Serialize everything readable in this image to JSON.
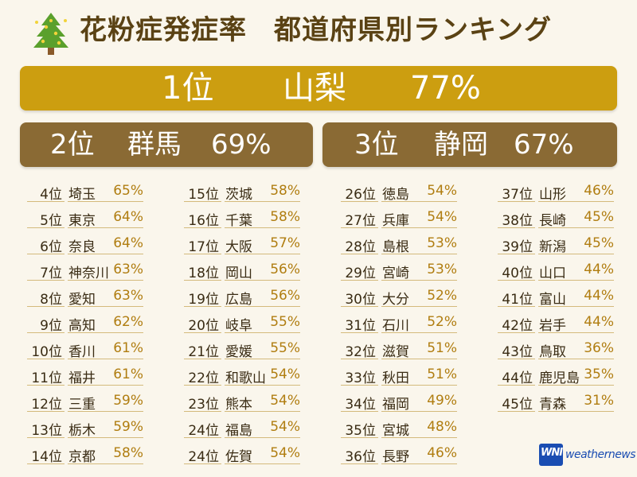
{
  "title": {
    "part1": "花粉症発症率",
    "part2": "都道府県別ランキング",
    "icon": "tree-icon"
  },
  "top": [
    {
      "rank": "1位",
      "pref": "山梨",
      "value": "77%"
    },
    {
      "rank": "2位",
      "pref": "群馬",
      "value": "69%"
    },
    {
      "rank": "3位",
      "pref": "静岡",
      "value": "67%"
    }
  ],
  "columns": [
    [
      {
        "rank": "4位",
        "pref": "埼玉",
        "value": "65%"
      },
      {
        "rank": "5位",
        "pref": "東京",
        "value": "64%"
      },
      {
        "rank": "6位",
        "pref": "奈良",
        "value": "64%"
      },
      {
        "rank": "7位",
        "pref": "神奈川",
        "value": "63%"
      },
      {
        "rank": "8位",
        "pref": "愛知",
        "value": "63%"
      },
      {
        "rank": "9位",
        "pref": "高知",
        "value": "62%"
      },
      {
        "rank": "10位",
        "pref": "香川",
        "value": "61%"
      },
      {
        "rank": "11位",
        "pref": "福井",
        "value": "61%"
      },
      {
        "rank": "12位",
        "pref": "三重",
        "value": "59%"
      },
      {
        "rank": "13位",
        "pref": "栃木",
        "value": "59%"
      },
      {
        "rank": "14位",
        "pref": "京都",
        "value": "58%"
      }
    ],
    [
      {
        "rank": "15位",
        "pref": "茨城",
        "value": "58%"
      },
      {
        "rank": "16位",
        "pref": "千葉",
        "value": "58%"
      },
      {
        "rank": "17位",
        "pref": "大阪",
        "value": "57%"
      },
      {
        "rank": "18位",
        "pref": "岡山",
        "value": "56%"
      },
      {
        "rank": "19位",
        "pref": "広島",
        "value": "56%"
      },
      {
        "rank": "20位",
        "pref": "岐阜",
        "value": "55%"
      },
      {
        "rank": "21位",
        "pref": "愛媛",
        "value": "55%"
      },
      {
        "rank": "22位",
        "pref": "和歌山",
        "value": "54%"
      },
      {
        "rank": "23位",
        "pref": "熊本",
        "value": "54%"
      },
      {
        "rank": "24位",
        "pref": "福島",
        "value": "54%"
      },
      {
        "rank": "24位",
        "pref": "佐賀",
        "value": "54%"
      }
    ],
    [
      {
        "rank": "26位",
        "pref": "徳島",
        "value": "54%"
      },
      {
        "rank": "27位",
        "pref": "兵庫",
        "value": "54%"
      },
      {
        "rank": "28位",
        "pref": "島根",
        "value": "53%"
      },
      {
        "rank": "29位",
        "pref": "宮崎",
        "value": "53%"
      },
      {
        "rank": "30位",
        "pref": "大分",
        "value": "52%"
      },
      {
        "rank": "31位",
        "pref": "石川",
        "value": "52%"
      },
      {
        "rank": "32位",
        "pref": "滋賀",
        "value": "51%"
      },
      {
        "rank": "33位",
        "pref": "秋田",
        "value": "51%"
      },
      {
        "rank": "34位",
        "pref": "福岡",
        "value": "49%"
      },
      {
        "rank": "35位",
        "pref": "宮城",
        "value": "48%"
      },
      {
        "rank": "36位",
        "pref": "長野",
        "value": "46%"
      }
    ],
    [
      {
        "rank": "37位",
        "pref": "山形",
        "value": "46%"
      },
      {
        "rank": "38位",
        "pref": "長崎",
        "value": "45%"
      },
      {
        "rank": "39位",
        "pref": "新潟",
        "value": "45%"
      },
      {
        "rank": "40位",
        "pref": "山口",
        "value": "44%"
      },
      {
        "rank": "41位",
        "pref": "富山",
        "value": "44%"
      },
      {
        "rank": "42位",
        "pref": "岩手",
        "value": "44%"
      },
      {
        "rank": "43位",
        "pref": "鳥取",
        "value": "36%"
      },
      {
        "rank": "44位",
        "pref": "鹿児島",
        "value": "35%"
      },
      {
        "rank": "45位",
        "pref": "青森",
        "value": "31%"
      }
    ]
  ],
  "logo": {
    "mark": "WNI",
    "word": "weathernews"
  },
  "colors": {
    "background": "#faf6ec",
    "first": "#cc9e10",
    "second_third": "#8a6a34",
    "percent": "#b07d10",
    "title": "#5a4214"
  }
}
